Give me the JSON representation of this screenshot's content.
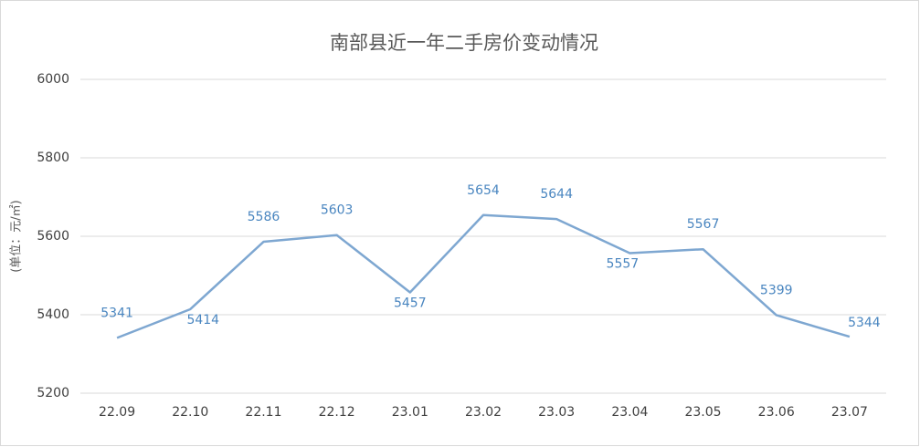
{
  "chart_data": {
    "type": "line",
    "title": "南部县近一年二手房价变动情况",
    "y_label": "(单位：元/㎡)",
    "categories": [
      "22.09",
      "22.10",
      "22.11",
      "22.12",
      "23.01",
      "23.02",
      "23.03",
      "23.04",
      "23.05",
      "23.06",
      "23.07"
    ],
    "values": [
      5341,
      5414,
      5586,
      5603,
      5457,
      5654,
      5644,
      5557,
      5567,
      5399,
      5344
    ],
    "color": "#7ea7d1",
    "label_color": "#4a86c0",
    "ylim": [
      5200,
      6000
    ],
    "yticks": [
      5200,
      5400,
      5600,
      5800,
      6000
    ],
    "grid": true
  }
}
